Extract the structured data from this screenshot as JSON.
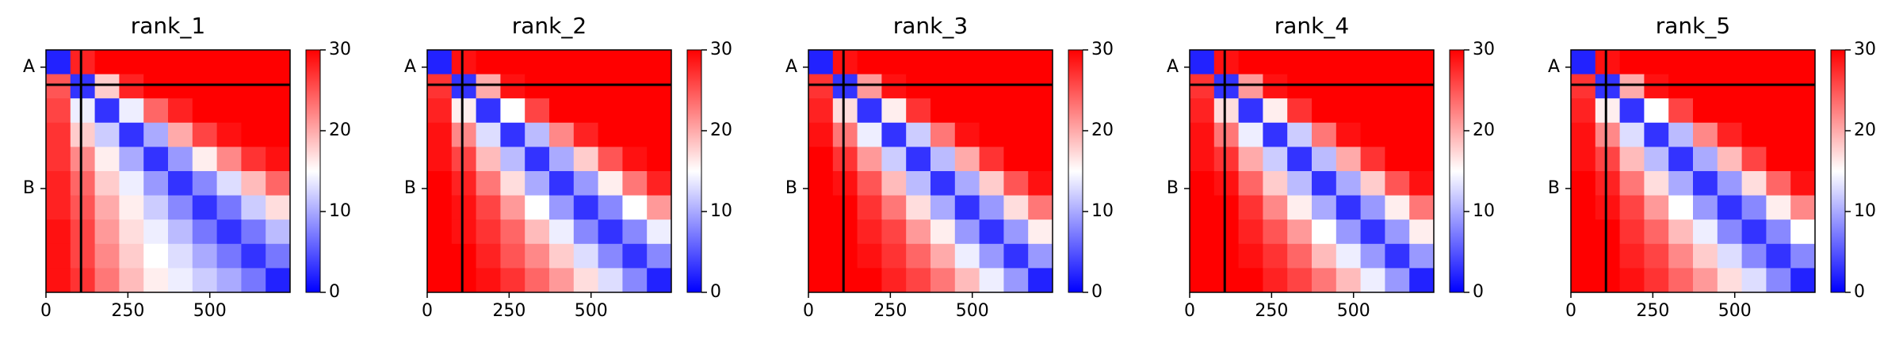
{
  "chart_data": [
    {
      "type": "heatmap",
      "title": "rank_1",
      "xlim": [
        0,
        745
      ],
      "ylim": [
        745,
        0
      ],
      "xticks": [
        0,
        250,
        500
      ],
      "yticks": [
        {
          "value": 53,
          "label": "A"
        },
        {
          "value": 426,
          "label": "B"
        }
      ],
      "chain_breaks": [
        107
      ],
      "clim": [
        0,
        30
      ],
      "cticks": [
        0,
        10,
        20,
        30
      ],
      "cmap": [
        "#0000ff",
        "#ffffff",
        "#ff0000"
      ],
      "z": [
        [
          2,
          28,
          30,
          30,
          30,
          30,
          30,
          30,
          30,
          30
        ],
        [
          25,
          3,
          18,
          28,
          30,
          30,
          30,
          30,
          30,
          30
        ],
        [
          26,
          14,
          3,
          14,
          24,
          28,
          30,
          30,
          30,
          30
        ],
        [
          27,
          18,
          12,
          3,
          10,
          20,
          26,
          29,
          30,
          30
        ],
        [
          27,
          22,
          16,
          10,
          3,
          9,
          16,
          22,
          27,
          29
        ],
        [
          28,
          24,
          18,
          14,
          9,
          3,
          8,
          13,
          19,
          24
        ],
        [
          28,
          25,
          20,
          16,
          12,
          8,
          3,
          7,
          12,
          17
        ],
        [
          29,
          26,
          21,
          17,
          14,
          11,
          7,
          3,
          7,
          11
        ],
        [
          29,
          26,
          22,
          18,
          15,
          13,
          10,
          7,
          3,
          7
        ],
        [
          29,
          27,
          23,
          19,
          16,
          14,
          12,
          10,
          7,
          2
        ]
      ]
    },
    {
      "type": "heatmap",
      "title": "rank_2",
      "xlim": [
        0,
        745
      ],
      "ylim": [
        745,
        0
      ],
      "xticks": [
        0,
        250,
        500
      ],
      "yticks": [
        {
          "value": 53,
          "label": "A"
        },
        {
          "value": 426,
          "label": "B"
        }
      ],
      "chain_breaks": [
        107
      ],
      "clim": [
        0,
        30
      ],
      "cticks": [
        0,
        10,
        20,
        30
      ],
      "cmap": [
        "#0000ff",
        "#ffffff",
        "#ff0000"
      ],
      "z": [
        [
          2,
          29,
          30,
          30,
          30,
          30,
          30,
          30,
          30,
          30
        ],
        [
          27,
          3,
          20,
          29,
          30,
          30,
          30,
          30,
          30,
          30
        ],
        [
          28,
          16,
          3,
          15,
          26,
          30,
          30,
          30,
          30,
          30
        ],
        [
          29,
          22,
          13,
          3,
          11,
          22,
          28,
          30,
          30,
          30
        ],
        [
          29,
          26,
          19,
          11,
          3,
          10,
          18,
          25,
          29,
          30
        ],
        [
          30,
          28,
          23,
          17,
          10,
          3,
          9,
          16,
          23,
          28
        ],
        [
          30,
          29,
          26,
          21,
          15,
          9,
          3,
          8,
          15,
          21
        ],
        [
          30,
          29,
          27,
          24,
          19,
          14,
          8,
          3,
          8,
          14
        ],
        [
          30,
          30,
          28,
          25,
          22,
          18,
          13,
          8,
          3,
          8
        ],
        [
          30,
          30,
          29,
          27,
          24,
          21,
          17,
          13,
          8,
          2
        ]
      ]
    },
    {
      "type": "heatmap",
      "title": "rank_3",
      "xlim": [
        0,
        745
      ],
      "ylim": [
        745,
        0
      ],
      "xticks": [
        0,
        250,
        500
      ],
      "yticks": [
        {
          "value": 53,
          "label": "A"
        },
        {
          "value": 426,
          "label": "B"
        }
      ],
      "chain_breaks": [
        107
      ],
      "clim": [
        0,
        30
      ],
      "cticks": [
        0,
        10,
        20,
        30
      ],
      "cmap": [
        "#0000ff",
        "#ffffff",
        "#ff0000"
      ],
      "z": [
        [
          2,
          29,
          30,
          30,
          30,
          30,
          30,
          30,
          30,
          30
        ],
        [
          27,
          3,
          21,
          29,
          30,
          30,
          30,
          30,
          30,
          30
        ],
        [
          28,
          17,
          3,
          16,
          27,
          30,
          30,
          30,
          30,
          30
        ],
        [
          29,
          23,
          14,
          3,
          12,
          23,
          29,
          30,
          30,
          30
        ],
        [
          30,
          27,
          21,
          12,
          3,
          11,
          20,
          27,
          30,
          30
        ],
        [
          30,
          29,
          25,
          19,
          11,
          3,
          10,
          18,
          25,
          29
        ],
        [
          30,
          30,
          27,
          23,
          17,
          10,
          3,
          9,
          17,
          23
        ],
        [
          30,
          30,
          28,
          26,
          21,
          16,
          9,
          3,
          9,
          16
        ],
        [
          30,
          30,
          29,
          27,
          24,
          20,
          14,
          9,
          3,
          9
        ],
        [
          30,
          30,
          30,
          28,
          26,
          23,
          19,
          14,
          9,
          2
        ]
      ]
    },
    {
      "type": "heatmap",
      "title": "rank_4",
      "xlim": [
        0,
        745
      ],
      "ylim": [
        745,
        0
      ],
      "xticks": [
        0,
        250,
        500
      ],
      "yticks": [
        {
          "value": 53,
          "label": "A"
        },
        {
          "value": 426,
          "label": "B"
        }
      ],
      "chain_breaks": [
        107
      ],
      "clim": [
        0,
        30
      ],
      "cticks": [
        0,
        10,
        20,
        30
      ],
      "cmap": [
        "#0000ff",
        "#ffffff",
        "#ff0000"
      ],
      "z": [
        [
          2,
          29,
          30,
          30,
          30,
          30,
          30,
          30,
          30,
          30
        ],
        [
          27,
          3,
          21,
          29,
          30,
          30,
          30,
          30,
          30,
          30
        ],
        [
          28,
          17,
          3,
          16,
          27,
          30,
          30,
          30,
          30,
          30
        ],
        [
          29,
          23,
          14,
          3,
          12,
          23,
          29,
          30,
          30,
          30
        ],
        [
          29,
          27,
          20,
          12,
          3,
          11,
          20,
          27,
          30,
          30
        ],
        [
          30,
          29,
          24,
          18,
          11,
          3,
          10,
          18,
          25,
          29
        ],
        [
          30,
          30,
          27,
          22,
          16,
          10,
          3,
          9,
          16,
          23
        ],
        [
          30,
          30,
          28,
          25,
          21,
          15,
          9,
          3,
          9,
          16
        ],
        [
          30,
          30,
          29,
          27,
          24,
          19,
          14,
          9,
          3,
          9
        ],
        [
          30,
          30,
          30,
          28,
          26,
          23,
          19,
          14,
          9,
          2
        ]
      ]
    },
    {
      "type": "heatmap",
      "title": "rank_5",
      "xlim": [
        0,
        745
      ],
      "ylim": [
        745,
        0
      ],
      "xticks": [
        0,
        250,
        500
      ],
      "yticks": [
        {
          "value": 53,
          "label": "A"
        },
        {
          "value": 426,
          "label": "B"
        }
      ],
      "chain_breaks": [
        107
      ],
      "clim": [
        0,
        30
      ],
      "cticks": [
        0,
        10,
        20,
        30
      ],
      "cmap": [
        "#0000ff",
        "#ffffff",
        "#ff0000"
      ],
      "z": [
        [
          2,
          29,
          30,
          30,
          30,
          30,
          30,
          30,
          30,
          30
        ],
        [
          27,
          3,
          20,
          29,
          30,
          30,
          30,
          30,
          30,
          30
        ],
        [
          28,
          16,
          3,
          15,
          26,
          30,
          30,
          30,
          30,
          30
        ],
        [
          29,
          22,
          13,
          3,
          11,
          22,
          28,
          30,
          30,
          30
        ],
        [
          29,
          26,
          19,
          11,
          3,
          10,
          19,
          26,
          30,
          30
        ],
        [
          30,
          28,
          23,
          17,
          10,
          3,
          9,
          17,
          24,
          29
        ],
        [
          30,
          29,
          26,
          21,
          15,
          9,
          3,
          8,
          16,
          22
        ],
        [
          30,
          30,
          27,
          24,
          19,
          14,
          8,
          3,
          8,
          15
        ],
        [
          30,
          30,
          28,
          26,
          22,
          18,
          13,
          8,
          3,
          8
        ],
        [
          30,
          30,
          29,
          27,
          24,
          21,
          17,
          13,
          8,
          2
        ]
      ]
    }
  ]
}
